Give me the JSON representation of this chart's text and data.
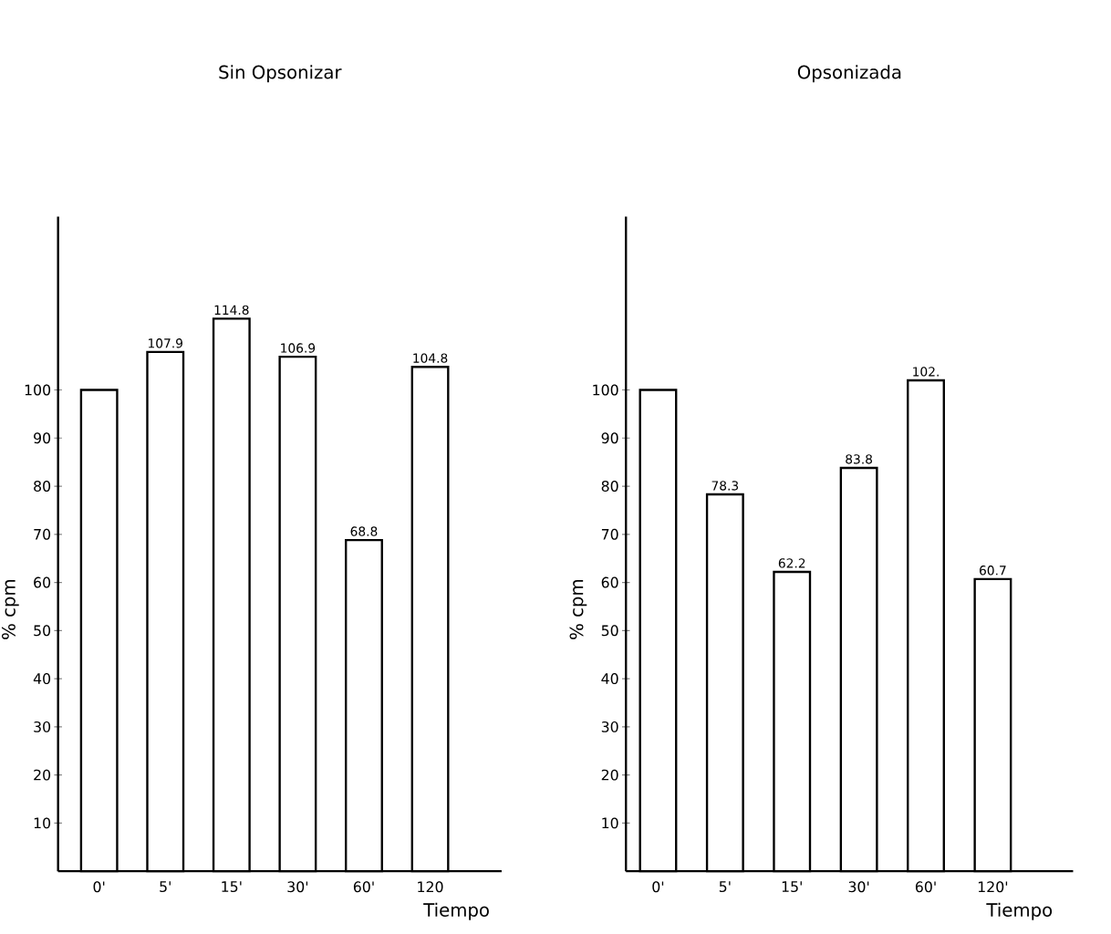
{
  "chart_data": [
    {
      "type": "bar",
      "title": "Sin Opsonizar",
      "xlabel": "Tiempo",
      "ylabel": "% cpm",
      "categories": [
        "0'",
        "5'",
        "15'",
        "30'",
        "60'",
        "120"
      ],
      "values": [
        100,
        107.9,
        114.8,
        106.9,
        68.8,
        104.8
      ],
      "value_labels": [
        null,
        "107.9",
        "114.8",
        "106.9",
        "68.8",
        "104.8"
      ],
      "color": "#ffffff",
      "ylim": [
        0,
        136
      ],
      "yticks": [
        10,
        20,
        30,
        40,
        50,
        60,
        70,
        80,
        90,
        100
      ],
      "grid": false,
      "legend": false
    },
    {
      "type": "bar",
      "title": "Opsonizada",
      "xlabel": "Tiempo",
      "ylabel": "% cpm",
      "categories": [
        "0'",
        "5'",
        "15'",
        "30'",
        "60'",
        "120'"
      ],
      "values": [
        100,
        78.3,
        62.2,
        83.8,
        102,
        60.7
      ],
      "value_labels": [
        null,
        "78.3",
        "62.2",
        "83.8",
        "102.",
        "60.7"
      ],
      "color": "#ffffff",
      "ylim": [
        0,
        136
      ],
      "yticks": [
        10,
        20,
        30,
        40,
        50,
        60,
        70,
        80,
        90,
        100
      ],
      "grid": false,
      "legend": false
    }
  ]
}
